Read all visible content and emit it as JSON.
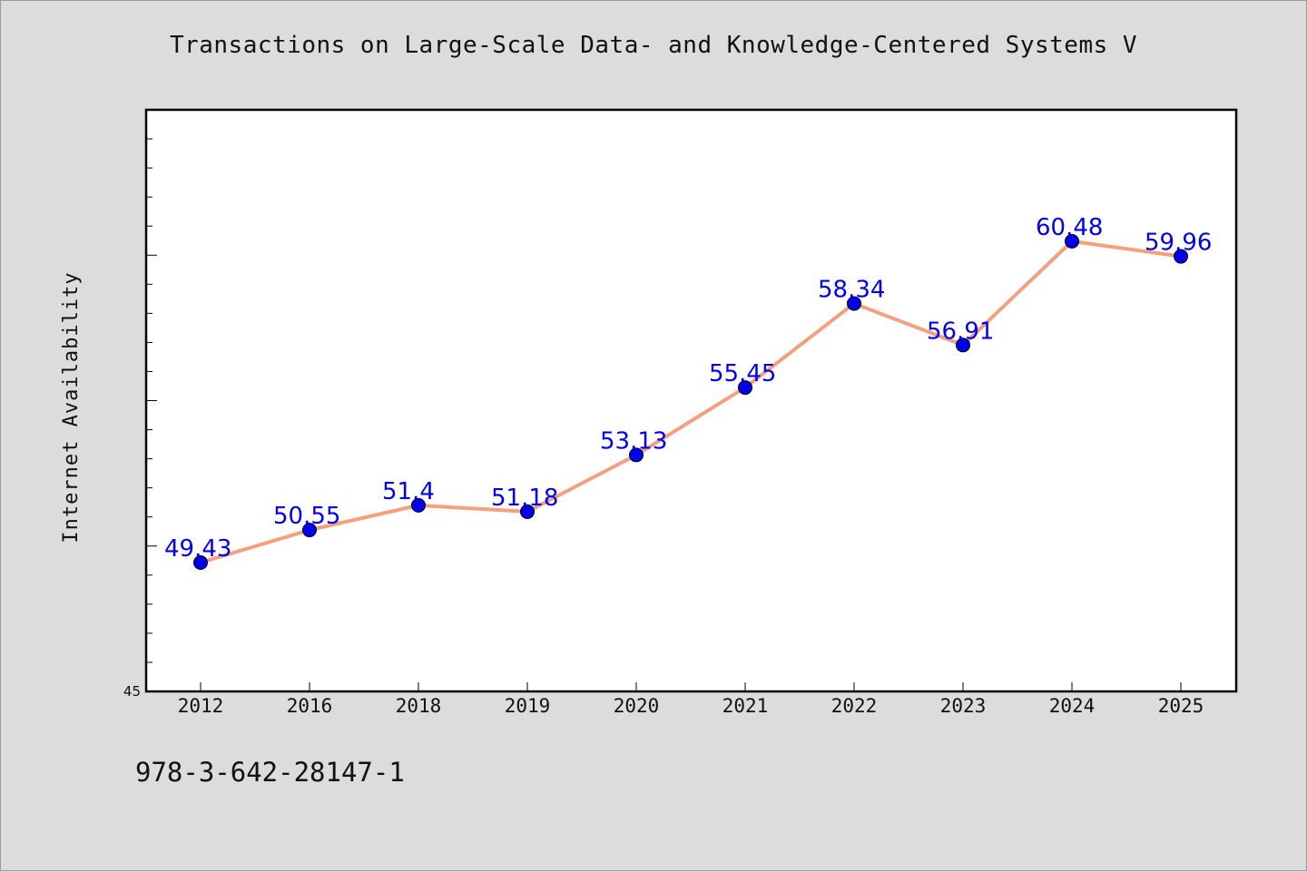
{
  "chart_data": {
    "type": "line",
    "title": "Transactions on Large-Scale Data- and Knowledge-Centered Systems V",
    "xlabel": "",
    "ylabel": "Internet Availability",
    "categories": [
      "2012",
      "2016",
      "2018",
      "2019",
      "2020",
      "2021",
      "2022",
      "2023",
      "2024",
      "2025"
    ],
    "values": [
      49.43,
      50.55,
      51.4,
      51.18,
      53.13,
      55.45,
      58.34,
      56.91,
      60.48,
      59.96
    ],
    "data_labels": [
      "49.43",
      "50.55",
      "51.4",
      "51.18",
      "53.13",
      "55.45",
      "58.34",
      "56.91",
      "60.48",
      "59.96"
    ],
    "ylim": [
      45,
      65
    ],
    "y_tick_labels": [
      "45"
    ],
    "grid": false,
    "line_color": "#f4a07f",
    "marker_color": "#0000ee",
    "label_color": "#0000ee"
  },
  "footer": {
    "isbn": "978-3-642-28147-1"
  }
}
